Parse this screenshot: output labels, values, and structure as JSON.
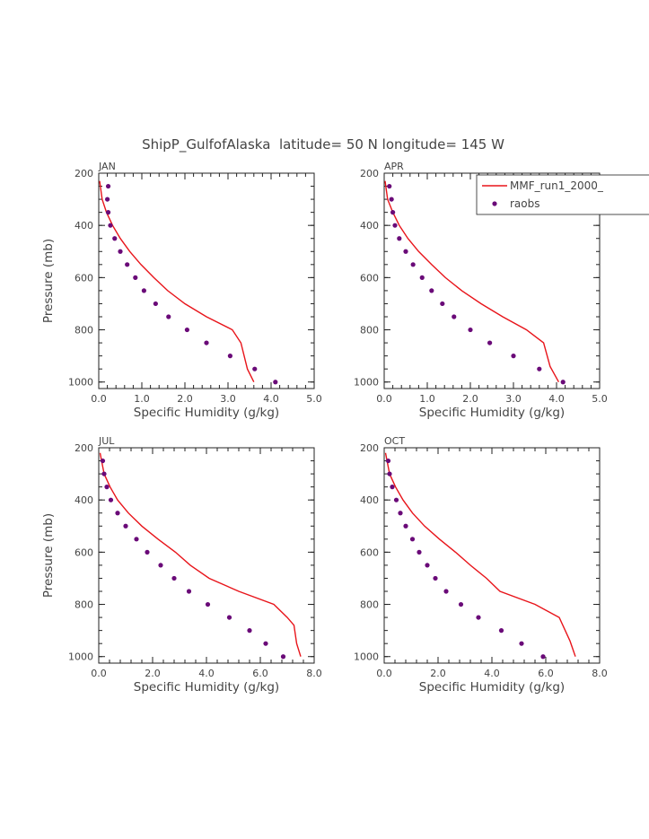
{
  "title": "ShipP_GulfofAlaska  latitude= 50 N longitude= 145 W",
  "colors": {
    "model": "#e8141a",
    "obs": "#6a0a78",
    "axis": "#222222"
  },
  "legend": {
    "model_label": "MMF_run1_2000_",
    "obs_label": "raobs",
    "placement": "top-right of APR panel"
  },
  "chart_data": [
    {
      "type": "line",
      "panel_label": "JAN",
      "xlabel": "Specific Humidity (g/kg)",
      "ylabel": "Pressure (mb)",
      "xlim": [
        0,
        5
      ],
      "ylim": [
        1025,
        200
      ],
      "xticks": [
        "0.0",
        "1.0",
        "2.0",
        "3.0",
        "4.0",
        "5.0"
      ],
      "yticks": [
        "200",
        "400",
        "600",
        "800",
        "1000"
      ],
      "series": [
        {
          "name": "MMF_run1_2000_",
          "kind": "line",
          "x": [
            0.02,
            0.08,
            0.18,
            0.32,
            0.5,
            0.72,
            0.98,
            1.28,
            1.6,
            2.0,
            2.5,
            3.1,
            3.3,
            3.45,
            3.6
          ],
          "y": [
            230,
            300,
            350,
            400,
            450,
            500,
            550,
            600,
            650,
            700,
            750,
            800,
            850,
            950,
            1000
          ]
        },
        {
          "name": "raobs",
          "kind": "points",
          "x": [
            0.22,
            0.2,
            0.22,
            0.27,
            0.37,
            0.5,
            0.66,
            0.85,
            1.05,
            1.32,
            1.62,
            2.05,
            2.5,
            3.05,
            3.62,
            4.1
          ],
          "y": [
            250,
            300,
            350,
            400,
            450,
            500,
            550,
            600,
            650,
            700,
            750,
            800,
            850,
            900,
            950,
            1000
          ]
        }
      ]
    },
    {
      "type": "line",
      "panel_label": "APR",
      "xlabel": "Specific Humidity (g/kg)",
      "ylabel": "",
      "xlim": [
        0,
        5
      ],
      "ylim": [
        1025,
        200
      ],
      "xticks": [
        "0.0",
        "1.0",
        "2.0",
        "3.0",
        "4.0",
        "5.0"
      ],
      "yticks": [
        "200",
        "400",
        "600",
        "800",
        "1000"
      ],
      "series": [
        {
          "name": "MMF_run1_2000_",
          "kind": "line",
          "x": [
            0.02,
            0.08,
            0.2,
            0.35,
            0.55,
            0.8,
            1.1,
            1.42,
            1.8,
            2.25,
            2.75,
            3.3,
            3.7,
            3.85,
            4.05
          ],
          "y": [
            230,
            300,
            350,
            400,
            450,
            500,
            550,
            600,
            650,
            700,
            750,
            800,
            850,
            940,
            1000
          ]
        },
        {
          "name": "raobs",
          "kind": "points",
          "x": [
            0.12,
            0.17,
            0.2,
            0.25,
            0.35,
            0.5,
            0.67,
            0.88,
            1.1,
            1.35,
            1.62,
            2.0,
            2.45,
            3.0,
            3.6,
            4.15
          ],
          "y": [
            250,
            300,
            350,
            400,
            450,
            500,
            550,
            600,
            650,
            700,
            750,
            800,
            850,
            900,
            950,
            1000
          ]
        }
      ]
    },
    {
      "type": "line",
      "panel_label": "JUL",
      "xlabel": "Specific Humidity (g/kg)",
      "ylabel": "Pressure (mb)",
      "xlim": [
        0,
        8
      ],
      "ylim": [
        1025,
        200
      ],
      "xticks": [
        "0.0",
        "2.0",
        "4.0",
        "6.0",
        "8.0"
      ],
      "yticks": [
        "200",
        "400",
        "600",
        "800",
        "1000"
      ],
      "series": [
        {
          "name": "MMF_run1_2000_",
          "kind": "line",
          "x": [
            0.05,
            0.2,
            0.42,
            0.7,
            1.1,
            1.6,
            2.2,
            2.85,
            3.4,
            4.1,
            5.2,
            6.5,
            7.0,
            7.25,
            7.35,
            7.5
          ],
          "y": [
            220,
            300,
            350,
            400,
            450,
            500,
            550,
            600,
            650,
            700,
            750,
            800,
            850,
            880,
            950,
            1000
          ]
        },
        {
          "name": "raobs",
          "kind": "points",
          "x": [
            0.15,
            0.2,
            0.3,
            0.45,
            0.7,
            1.0,
            1.4,
            1.8,
            2.3,
            2.8,
            3.35,
            4.05,
            4.85,
            5.6,
            6.2,
            6.85
          ],
          "y": [
            250,
            300,
            350,
            400,
            450,
            500,
            550,
            600,
            650,
            700,
            750,
            800,
            850,
            900,
            950,
            1000
          ]
        }
      ]
    },
    {
      "type": "line",
      "panel_label": "OCT",
      "xlabel": "Specific Humidity (g/kg)",
      "ylabel": "",
      "xlim": [
        0,
        8
      ],
      "ylim": [
        1025,
        200
      ],
      "xticks": [
        "0.0",
        "2.0",
        "4.0",
        "6.0",
        "8.0"
      ],
      "yticks": [
        "200",
        "400",
        "600",
        "800",
        "1000"
      ],
      "series": [
        {
          "name": "MMF_run1_2000_",
          "kind": "line",
          "x": [
            0.05,
            0.2,
            0.42,
            0.7,
            1.05,
            1.5,
            2.05,
            2.65,
            3.2,
            3.8,
            4.3,
            5.6,
            6.5,
            6.9,
            7.1
          ],
          "y": [
            220,
            300,
            350,
            400,
            450,
            500,
            550,
            600,
            650,
            700,
            750,
            800,
            850,
            940,
            1000
          ]
        },
        {
          "name": "raobs",
          "kind": "points",
          "x": [
            0.15,
            0.2,
            0.3,
            0.45,
            0.6,
            0.8,
            1.05,
            1.3,
            1.6,
            1.9,
            2.3,
            2.85,
            3.5,
            4.35,
            5.1,
            5.9
          ],
          "y": [
            250,
            300,
            350,
            400,
            450,
            500,
            550,
            600,
            650,
            700,
            750,
            800,
            850,
            900,
            950,
            1000
          ]
        }
      ]
    }
  ]
}
